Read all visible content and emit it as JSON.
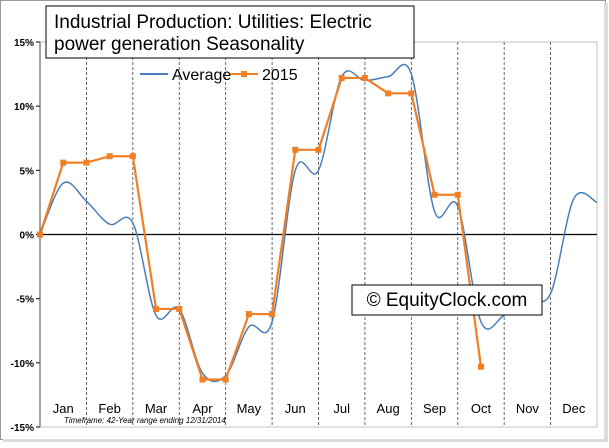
{
  "chart_data": {
    "type": "line",
    "title": "Industrial Production: Utilities: Electric power generation Seasonality",
    "title_lines": [
      "Industrial Production: Utilities: Electric",
      "power generation Seasonality"
    ],
    "watermark": "© EquityClock.com",
    "footnote": "Timeframe: 42-Year range ending 12/31/2014",
    "categories": [
      "Jan",
      "Feb",
      "Mar",
      "Apr",
      "May",
      "Jun",
      "Jul",
      "Aug",
      "Sep",
      "Oct",
      "Nov",
      "Dec"
    ],
    "x": [
      0,
      0.5,
      1,
      1.5,
      2,
      2.5,
      3,
      3.5,
      4,
      4.5,
      5,
      5.5,
      6,
      6.5,
      7,
      7.5,
      8,
      8.5,
      9,
      9.5,
      10,
      10.5,
      11,
      11.5,
      12
    ],
    "xlim": [
      0,
      12
    ],
    "ylim": [
      -15,
      15
    ],
    "yticks": [
      {
        "value": -15,
        "label": "-15%"
      },
      {
        "value": -10,
        "label": "-10%"
      },
      {
        "value": -5,
        "label": "-5%"
      },
      {
        "value": 0,
        "label": "0%"
      },
      {
        "value": 5,
        "label": "5%"
      },
      {
        "value": 10,
        "label": "10%"
      },
      {
        "value": 15,
        "label": "15%"
      }
    ],
    "legend": "top",
    "series": [
      {
        "name": "Average",
        "color": "#4a7ebb",
        "smooth": true,
        "markers": false,
        "values": [
          0,
          4.0,
          2.6,
          0.8,
          0.9,
          -6.3,
          -5.8,
          -10.8,
          -11.0,
          -7.2,
          -6.8,
          5.0,
          5.0,
          12.3,
          12.0,
          12.3,
          12.5,
          1.8,
          2.2,
          -6.8,
          -6.3,
          -5.0,
          -4.6,
          2.8,
          2.5
        ]
      },
      {
        "name": "2015",
        "color": "#f07f26",
        "smooth": false,
        "markers": true,
        "values": [
          0,
          5.6,
          5.6,
          6.1,
          6.1,
          -5.8,
          -5.8,
          -11.3,
          -11.3,
          -6.2,
          -6.2,
          6.6,
          6.6,
          12.2,
          12.2,
          11.0,
          11.0,
          3.1,
          3.1,
          -10.3,
          null,
          null,
          null,
          null,
          null
        ]
      }
    ]
  }
}
